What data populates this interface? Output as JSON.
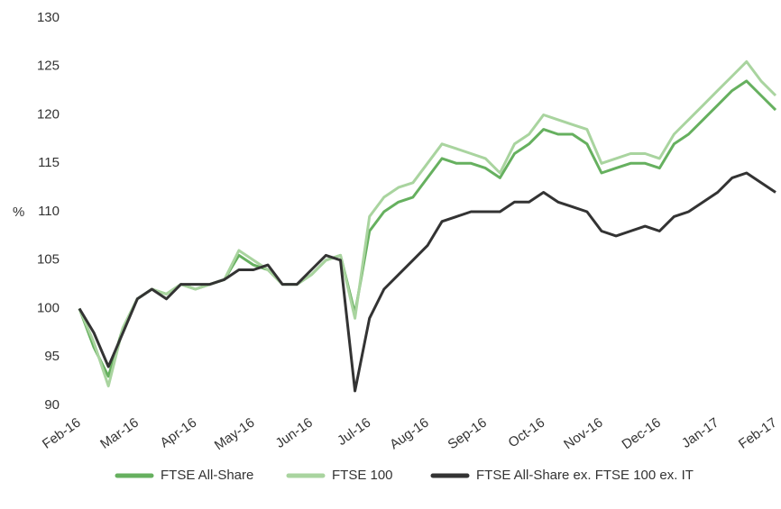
{
  "chart_data": {
    "type": "line",
    "y_label": "%",
    "categories": [
      "Feb-16",
      null,
      null,
      null,
      "Mar-16",
      null,
      null,
      null,
      "Apr-16",
      null,
      null,
      null,
      "May-16",
      null,
      null,
      null,
      "Jun-16",
      null,
      null,
      null,
      "Jul-16",
      null,
      null,
      null,
      "Aug-16",
      null,
      null,
      null,
      "Sep-16",
      null,
      null,
      null,
      "Oct-16",
      null,
      null,
      null,
      "Nov-16",
      null,
      null,
      null,
      "Dec-16",
      null,
      null,
      null,
      "Jan-17",
      null,
      null,
      null,
      "Feb-17"
    ],
    "series": [
      {
        "name": "FTSE All-Share",
        "color": "#66b05f",
        "values": [
          100,
          96,
          93,
          98,
          101,
          102,
          101.5,
          102.5,
          102,
          102.5,
          103,
          105.5,
          104.5,
          104,
          102.5,
          102.5,
          103.5,
          105,
          105.5,
          99.5,
          108,
          110,
          111,
          111.5,
          113.5,
          115.5,
          115,
          115,
          114.5,
          113.5,
          116,
          117,
          118.5,
          118,
          118,
          117,
          114,
          114.5,
          115,
          115,
          114.5,
          117,
          118,
          119.5,
          121,
          122.5,
          123.5,
          122,
          120.5
        ]
      },
      {
        "name": "FTSE 100",
        "color": "#a9d49f",
        "values": [
          100,
          96.5,
          92,
          98,
          101,
          102,
          101.5,
          102.5,
          102,
          102.5,
          103,
          106,
          105,
          104,
          102.5,
          102.5,
          103.5,
          105,
          105.5,
          99,
          109.5,
          111.5,
          112.5,
          113,
          115,
          117,
          116.5,
          116,
          115.5,
          114,
          117,
          118,
          120,
          119.5,
          119,
          118.5,
          115,
          115.5,
          116,
          116,
          115.5,
          118,
          119.5,
          121,
          122.5,
          124,
          125.5,
          123.5,
          122
        ]
      },
      {
        "name": "FTSE All-Share ex. FTSE 100 ex. IT",
        "color": "#333333",
        "values": [
          100,
          97.5,
          94,
          97.5,
          101,
          102,
          101,
          102.5,
          102.5,
          102.5,
          103,
          104,
          104,
          104.5,
          102.5,
          102.5,
          104,
          105.5,
          105,
          91.5,
          99,
          102,
          103.5,
          105,
          106.5,
          109,
          109.5,
          110,
          110,
          110,
          111,
          111,
          112,
          111,
          110.5,
          110,
          108,
          107.5,
          108,
          108.5,
          108,
          109.5,
          110,
          111,
          112,
          113.5,
          114,
          113,
          112
        ]
      }
    ],
    "ylim": [
      90,
      130
    ],
    "yticks": [
      90,
      95,
      100,
      105,
      110,
      115,
      120,
      125,
      130
    ],
    "grid": false,
    "legend": "bottom"
  }
}
